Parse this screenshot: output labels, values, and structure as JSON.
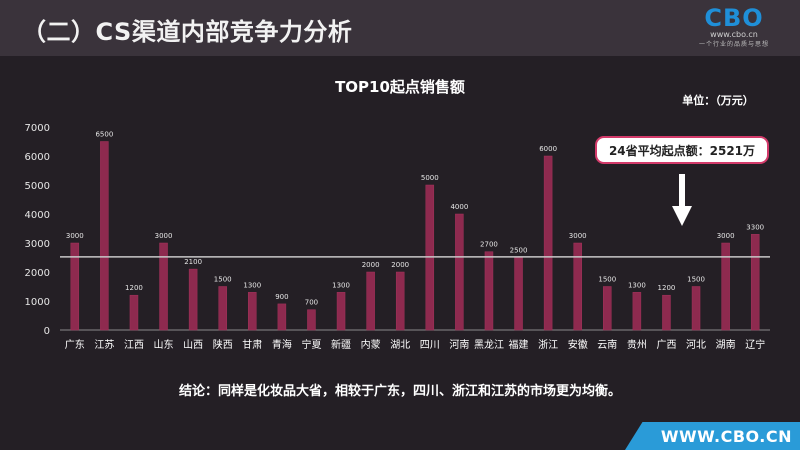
{
  "header": {
    "title": "（二）CS渠道内部竞争力分析",
    "logo_mark": "CBO",
    "logo_url": "www.cbo.cn",
    "logo_slogan": "一个行业的品质与思想"
  },
  "conclusion": "结论：同样是化妆品大省，相较于广东，四川、浙江和江苏的市场更为均衡。",
  "footer": {
    "url": "WWW.CBO.CN"
  },
  "colors": {
    "background": "#241f25",
    "header": "#3a333b",
    "bar": "#8e2a4f",
    "bar_highlight": "#a5335c",
    "average_line": "#c8c8c8",
    "callout_border": "#d23a6a",
    "callout_bg": "#ffffff",
    "footer_band": "#2a9bd8",
    "text": "#ffffff"
  },
  "chart_data": {
    "type": "bar",
    "title": "TOP10起点销售额",
    "unit_label": "单位：（万元）",
    "xlabel": "",
    "ylabel": "",
    "ylim": [
      0,
      7000
    ],
    "yticks": [
      0,
      1000,
      2000,
      3000,
      4000,
      5000,
      6000,
      7000
    ],
    "grid": false,
    "categories": [
      "广东",
      "江苏",
      "江西",
      "山东",
      "山西",
      "陕西",
      "甘肃",
      "青海",
      "宁夏",
      "新疆",
      "内蒙",
      "湖北",
      "四川",
      "河南",
      "黑龙江",
      "福建",
      "浙江",
      "安徽",
      "云南",
      "贵州",
      "广西",
      "河北",
      "湖南",
      "辽宁"
    ],
    "values": [
      3000,
      6500,
      1200,
      3000,
      2100,
      1500,
      1300,
      900,
      700,
      1300,
      2000,
      2000,
      5000,
      4000,
      2700,
      2500,
      6000,
      3000,
      1500,
      1300,
      1200,
      1500,
      3000,
      3300
    ],
    "data_labels": [
      "3000",
      "6500",
      "1200",
      "3000",
      "2100",
      "1500",
      "1300",
      "900",
      "700",
      "1300",
      "2000",
      "2000",
      "5000",
      "4000",
      "2700",
      "2500",
      "6000",
      "3000",
      "1500",
      "1300",
      "1200",
      "1500",
      "3000",
      "3300"
    ],
    "average": {
      "value": 2521,
      "label": "24省平均起点额：2521万"
    }
  }
}
